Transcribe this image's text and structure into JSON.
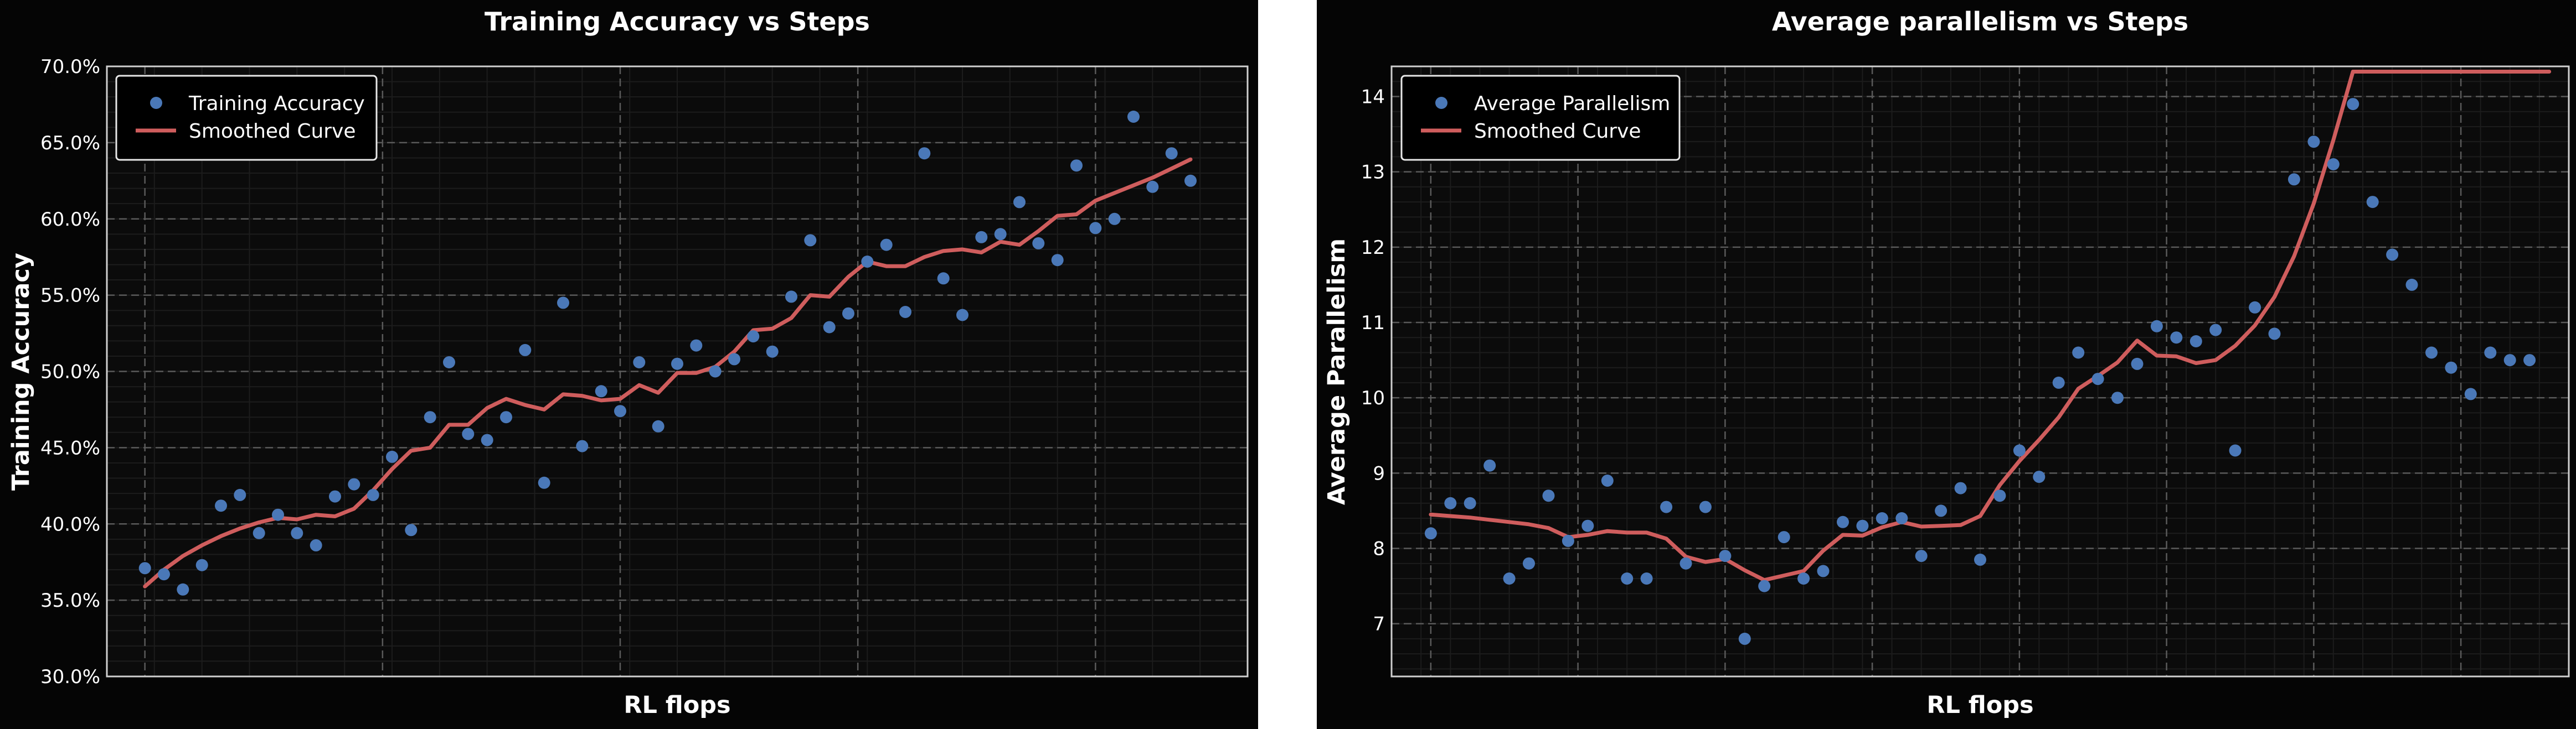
{
  "theme": {
    "figure_bg": "#050505",
    "axes_bg": "#0b0b0b",
    "gap_bg": "#ffffff",
    "text": "#ffffff",
    "grid_major": "#5a5a5a",
    "grid_minor": "#1c1c1c",
    "spine": "#d0d0d0",
    "scatter": "#4a78b8",
    "line": "#cf5d5d"
  },
  "chart_data": [
    {
      "type": "scatter",
      "title": "Training Accuracy vs Steps",
      "xlabel": "RL flops",
      "ylabel": "Training Accuracy",
      "ylim": [
        30,
        70
      ],
      "xlim": [
        -2,
        58
      ],
      "yticks": [
        30,
        35,
        40,
        45,
        50,
        55,
        60,
        65,
        70
      ],
      "ytick_labels": [
        "30.0%",
        "35.0%",
        "40.0%",
        "45.0%",
        "50.0%",
        "55.0%",
        "60.0%",
        "65.0%",
        "70.0%"
      ],
      "xgrid": [
        0,
        12.5,
        25,
        37.5,
        50
      ],
      "legend": [
        "Training Accuracy",
        "Smoothed Curve"
      ],
      "legend_position": "upper-left",
      "series": [
        {
          "name": "Training Accuracy",
          "kind": "scatter",
          "x": [
            0,
            1,
            2,
            3,
            4,
            5,
            6,
            7,
            8,
            9,
            10,
            11,
            12,
            13,
            14,
            15,
            16,
            17,
            18,
            19,
            20,
            21,
            22,
            23,
            24,
            25,
            26,
            27,
            28,
            29,
            30,
            31,
            32,
            33,
            34,
            35,
            36,
            37,
            38,
            39,
            40,
            41,
            42,
            43,
            44,
            45,
            46,
            47,
            48,
            49,
            50,
            51,
            52,
            53,
            54,
            55
          ],
          "y": [
            37.1,
            36.7,
            35.7,
            37.3,
            41.2,
            41.9,
            39.4,
            40.6,
            39.4,
            38.6,
            41.8,
            42.6,
            41.9,
            44.4,
            39.6,
            47.0,
            50.6,
            45.9,
            45.5,
            47.0,
            51.4,
            42.7,
            54.5,
            45.1,
            48.7,
            47.4,
            50.6,
            46.4,
            50.5,
            51.7,
            50.0,
            50.8,
            52.3,
            51.3,
            54.9,
            58.6,
            52.9,
            53.8,
            57.2,
            58.3,
            53.9,
            64.3,
            56.1,
            53.7,
            58.8,
            59.0,
            61.1,
            58.4,
            57.3,
            63.5,
            59.4,
            60.0,
            66.7,
            62.1,
            64.3,
            62.5
          ]
        },
        {
          "name": "Smoothed Curve",
          "kind": "line",
          "x": [
            0,
            1,
            2,
            3,
            4,
            5,
            6,
            7,
            8,
            9,
            10,
            11,
            12,
            13,
            14,
            15,
            16,
            17,
            18,
            19,
            20,
            21,
            22,
            23,
            24,
            25,
            26,
            27,
            28,
            29,
            30,
            31,
            32,
            33,
            34,
            35,
            36,
            37,
            38,
            39,
            40,
            41,
            42,
            43,
            44,
            45,
            46,
            47,
            48,
            49,
            50,
            51,
            52,
            53,
            54,
            55
          ],
          "y": [
            35.9,
            37.0,
            37.9,
            38.6,
            39.2,
            39.7,
            40.1,
            40.4,
            40.3,
            40.6,
            40.5,
            41.0,
            42.2,
            43.6,
            44.8,
            45.0,
            46.5,
            46.5,
            47.6,
            48.2,
            47.8,
            47.5,
            48.5,
            48.4,
            48.1,
            48.2,
            49.1,
            48.6,
            49.9,
            49.9,
            50.3,
            51.3,
            52.7,
            52.8,
            53.5,
            55.0,
            54.9,
            56.2,
            57.2,
            56.9,
            56.9,
            57.5,
            57.9,
            58.0,
            57.8,
            58.5,
            58.3,
            59.2,
            60.2,
            60.3,
            61.2,
            61.7,
            62.2,
            62.7,
            63.3,
            63.9
          ]
        }
      ]
    },
    {
      "type": "scatter",
      "title": "Average parallelism vs Steps",
      "xlabel": "RL flops",
      "ylabel": "Average Parallelism",
      "ylim": [
        6.3,
        14.4
      ],
      "xlim": [
        -2,
        58
      ],
      "yticks": [
        7,
        8,
        9,
        10,
        11,
        12,
        13,
        14
      ],
      "ytick_labels": [
        "7",
        "8",
        "9",
        "10",
        "11",
        "12",
        "13",
        "14"
      ],
      "xgrid": [
        0,
        7.5,
        15,
        22.5,
        30,
        37.5,
        45,
        52.5
      ],
      "legend": [
        "Average Parallelism",
        "Smoothed Curve"
      ],
      "legend_position": "upper-left",
      "series": [
        {
          "name": "Average Parallelism",
          "kind": "scatter",
          "x": [
            0,
            1,
            2,
            3,
            4,
            5,
            6,
            7,
            8,
            9,
            10,
            11,
            12,
            13,
            14,
            15,
            16,
            17,
            18,
            19,
            20,
            21,
            22,
            23,
            24,
            25,
            26,
            27,
            28,
            29,
            30,
            31,
            32,
            33,
            34,
            35,
            36,
            37,
            38,
            39,
            40,
            41,
            42,
            43,
            44,
            45,
            46,
            47,
            48,
            49,
            50,
            51,
            52,
            53,
            54,
            55,
            56
          ],
          "y": [
            8.2,
            8.6,
            8.6,
            9.1,
            7.6,
            7.8,
            8.7,
            8.1,
            8.3,
            8.9,
            7.6,
            7.6,
            8.55,
            7.8,
            8.55,
            7.9,
            6.8,
            7.5,
            8.15,
            7.6,
            7.7,
            8.35,
            8.3,
            8.4,
            8.4,
            7.9,
            8.5,
            8.8,
            7.85,
            8.7,
            9.3,
            8.95,
            10.2,
            10.6,
            10.25,
            10.0,
            10.45,
            10.95,
            10.8,
            10.75,
            10.9,
            9.3,
            11.2,
            10.85,
            12.9,
            13.4,
            13.1,
            13.9,
            12.6,
            11.9,
            11.5,
            10.6,
            10.4,
            10.05,
            10.6,
            10.5,
            10.5
          ]
        },
        {
          "name": "Smoothed Curve",
          "kind": "line",
          "x": [
            0,
            1,
            2,
            3,
            4,
            5,
            6,
            7,
            8,
            9,
            10,
            11,
            12,
            13,
            14,
            15,
            16,
            17,
            18,
            19,
            20,
            21,
            22,
            23,
            24,
            25,
            26,
            27,
            28,
            29,
            30,
            31,
            32,
            33,
            34,
            35,
            36,
            37,
            38,
            39,
            40,
            41,
            42,
            43,
            44,
            45,
            46,
            47,
            48,
            49,
            50,
            51,
            52,
            53,
            54,
            55,
            56,
            57
          ],
          "y": [
            8.45,
            8.43,
            8.41,
            8.38,
            8.35,
            8.32,
            8.27,
            8.15,
            8.18,
            8.23,
            8.21,
            8.21,
            8.13,
            7.89,
            7.82,
            7.86,
            7.71,
            7.58,
            7.64,
            7.7,
            7.97,
            8.18,
            8.17,
            8.28,
            8.35,
            8.29,
            8.3,
            8.31,
            8.43,
            8.84,
            9.16,
            9.44,
            9.74,
            10.12,
            10.29,
            10.47,
            10.76,
            10.56,
            10.55,
            10.46,
            10.5,
            10.69,
            10.96,
            11.34,
            11.88,
            12.58,
            13.42,
            14.33,
            14.33,
            14.33,
            14.33,
            14.33,
            14.33,
            14.33,
            14.33,
            14.33,
            14.33,
            14.33
          ]
        }
      ]
    }
  ]
}
